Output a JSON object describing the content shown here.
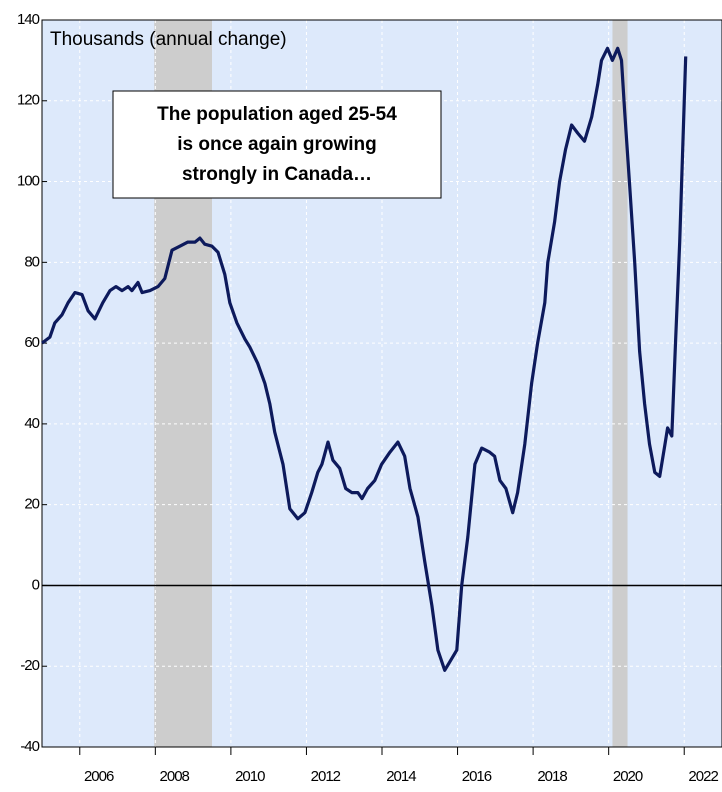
{
  "chart_data": {
    "type": "line",
    "y_label": "Thousands (annual change)",
    "annotation": [
      "The population aged 25-54",
      "is once again growing",
      "strongly in Canada…"
    ],
    "xlim": [
      2005,
      2023
    ],
    "xticks": [
      2006,
      2008,
      2010,
      2012,
      2014,
      2016,
      2018,
      2020,
      2022
    ],
    "ylim": [
      -40,
      140
    ],
    "yticks": [
      -40,
      -20,
      0,
      20,
      40,
      60,
      80,
      100,
      120,
      140
    ],
    "grid": true,
    "shaded_periods": [
      [
        2007.97,
        2009.5
      ],
      [
        2020.1,
        2020.5
      ]
    ],
    "series": [
      {
        "color": "#0d1a5c",
        "x": [
          2005.0,
          2005.21,
          2005.34,
          2005.53,
          2005.69,
          2005.87,
          2006.06,
          2006.22,
          2006.4,
          2006.61,
          2006.8,
          2006.96,
          2007.12,
          2007.28,
          2007.38,
          2007.54,
          2007.65,
          2007.86,
          2008.07,
          2008.25,
          2008.44,
          2008.65,
          2008.86,
          2009.05,
          2009.18,
          2009.31,
          2009.5,
          2009.66,
          2009.84,
          2009.97,
          2010.16,
          2010.37,
          2010.5,
          2010.71,
          2010.9,
          2011.03,
          2011.16,
          2011.38,
          2011.56,
          2011.77,
          2011.96,
          2012.14,
          2012.3,
          2012.41,
          2012.57,
          2012.7,
          2012.88,
          2013.04,
          2013.2,
          2013.36,
          2013.47,
          2013.62,
          2013.81,
          2013.99,
          2014.21,
          2014.42,
          2014.6,
          2014.74,
          2014.95,
          2015.13,
          2015.32,
          2015.48,
          2015.66,
          2015.79,
          2015.98,
          2016.11,
          2016.27,
          2016.46,
          2016.64,
          2016.85,
          2016.98,
          2017.12,
          2017.28,
          2017.46,
          2017.59,
          2017.78,
          2017.96,
          2018.12,
          2018.31,
          2018.39,
          2018.57,
          2018.7,
          2018.86,
          2019.02,
          2019.18,
          2019.36,
          2019.55,
          2019.71,
          2019.81,
          2019.97,
          2020.1,
          2020.24,
          2020.34,
          2020.42,
          2020.55,
          2020.69,
          2020.82,
          2020.95,
          2021.08,
          2021.22,
          2021.35,
          2021.49,
          2021.56,
          2021.67,
          2021.77,
          2021.88,
          2022.04
        ],
        "values": [
          60,
          61.5,
          65,
          67,
          70,
          72.5,
          72,
          68,
          66,
          70,
          73,
          74,
          73,
          74,
          73,
          75,
          72.5,
          73,
          74,
          76,
          83,
          84,
          85,
          85,
          86,
          84.5,
          84,
          82.5,
          77,
          70,
          65,
          61,
          59,
          55,
          50,
          45,
          38,
          30,
          19,
          16.5,
          18,
          23,
          28,
          30,
          35.5,
          31,
          29,
          24,
          23,
          23,
          21.5,
          24,
          26,
          30,
          33,
          35.5,
          32,
          24,
          17,
          6,
          -5,
          -16,
          -21,
          -19,
          -16,
          0,
          12,
          30,
          34,
          33,
          32,
          26,
          24,
          18,
          23,
          35,
          50,
          60,
          70,
          80,
          90,
          100,
          108,
          114,
          112,
          110,
          116,
          124,
          130,
          133,
          130,
          133,
          130,
          118,
          100,
          80,
          58,
          45,
          35,
          28,
          27,
          35,
          39,
          37,
          60,
          85,
          131
        ]
      }
    ]
  }
}
